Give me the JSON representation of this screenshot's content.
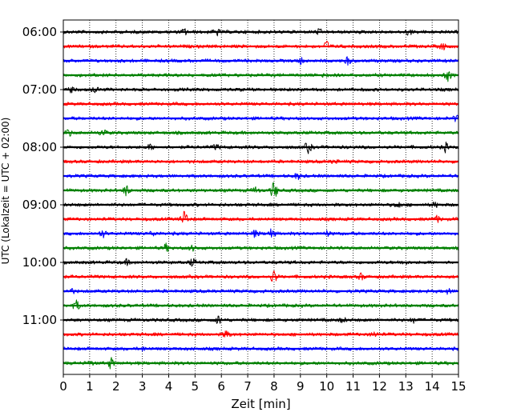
{
  "chart_data": {
    "type": "line",
    "subtype": "seismic helicorder",
    "xlabel": "Zeit  [min]",
    "ylabel": "UTC (Lokalzeit = UTC + 02:00)",
    "xlim": [
      0,
      15
    ],
    "x_ticks": [
      0,
      1,
      2,
      3,
      4,
      5,
      6,
      7,
      8,
      9,
      10,
      11,
      12,
      13,
      14,
      15
    ],
    "x_tick_labels": [
      "0",
      "1",
      "2",
      "3",
      "4",
      "5",
      "6",
      "7",
      "8",
      "9",
      "10",
      "11",
      "12",
      "13",
      "14",
      "15"
    ],
    "y_tick_labels": [
      "06:00",
      "07:00",
      "08:00",
      "09:00",
      "10:00",
      "11:00"
    ],
    "grid": "vertical dotted",
    "line_colors": [
      "#000000",
      "#ff0000",
      "#0000ff",
      "#008000"
    ],
    "traces": [
      {
        "start": "06:00",
        "color": "#000000",
        "events": [
          [
            4.6,
            0.5
          ],
          [
            5.8,
            0.7
          ],
          [
            9.7,
            0.4
          ],
          [
            13.1,
            0.5
          ]
        ]
      },
      {
        "start": "06:15",
        "color": "#ff0000",
        "events": [
          [
            10.0,
            0.9
          ],
          [
            14.4,
            0.5
          ]
        ]
      },
      {
        "start": "06:30",
        "color": "#0000ff",
        "events": [
          [
            9.0,
            0.5
          ],
          [
            10.8,
            0.6
          ]
        ]
      },
      {
        "start": "06:45",
        "color": "#008000",
        "events": [
          [
            14.6,
            0.9
          ],
          [
            9.9,
            0.3
          ]
        ]
      },
      {
        "start": "07:00",
        "color": "#000000",
        "events": [
          [
            0.3,
            0.4
          ],
          [
            1.2,
            0.5
          ]
        ]
      },
      {
        "start": "07:15",
        "color": "#ff0000",
        "events": []
      },
      {
        "start": "07:30",
        "color": "#0000ff",
        "events": [
          [
            14.9,
            0.4
          ]
        ]
      },
      {
        "start": "07:45",
        "color": "#008000",
        "events": [
          [
            0.2,
            0.6
          ],
          [
            1.5,
            0.7
          ]
        ]
      },
      {
        "start": "08:00",
        "color": "#000000",
        "events": [
          [
            3.3,
            0.4
          ],
          [
            5.8,
            0.4
          ],
          [
            9.3,
            0.9
          ],
          [
            14.5,
            0.7
          ]
        ]
      },
      {
        "start": "08:15",
        "color": "#ff0000",
        "events": [
          [
            10.3,
            0.3
          ]
        ]
      },
      {
        "start": "08:30",
        "color": "#0000ff",
        "events": [
          [
            8.9,
            0.5
          ]
        ]
      },
      {
        "start": "08:45",
        "color": "#008000",
        "events": [
          [
            2.4,
            0.9
          ],
          [
            7.3,
            0.5
          ],
          [
            8.0,
            1.6
          ]
        ]
      },
      {
        "start": "09:00",
        "color": "#000000",
        "events": [
          [
            12.7,
            0.5
          ],
          [
            14.1,
            0.4
          ]
        ]
      },
      {
        "start": "09:15",
        "color": "#ff0000",
        "events": [
          [
            4.6,
            1.5
          ],
          [
            14.2,
            0.5
          ]
        ]
      },
      {
        "start": "09:30",
        "color": "#0000ff",
        "events": [
          [
            1.5,
            0.6
          ],
          [
            3.4,
            0.4
          ],
          [
            7.3,
            0.6
          ],
          [
            7.9,
            0.8
          ],
          [
            10.0,
            0.4
          ]
        ]
      },
      {
        "start": "09:45",
        "color": "#008000",
        "events": [
          [
            3.9,
            0.6
          ],
          [
            4.9,
            0.4
          ]
        ]
      },
      {
        "start": "10:00",
        "color": "#000000",
        "events": [
          [
            2.4,
            0.4
          ],
          [
            4.9,
            0.6
          ],
          [
            12.9,
            0.4
          ]
        ]
      },
      {
        "start": "10:15",
        "color": "#ff0000",
        "events": [
          [
            8.0,
            1.2
          ],
          [
            11.3,
            0.5
          ]
        ]
      },
      {
        "start": "10:30",
        "color": "#0000ff",
        "events": [
          [
            0.3,
            0.4
          ],
          [
            14.6,
            0.4
          ]
        ]
      },
      {
        "start": "10:45",
        "color": "#008000",
        "events": [
          [
            0.5,
            0.8
          ]
        ]
      },
      {
        "start": "11:00",
        "color": "#000000",
        "events": [
          [
            5.9,
            0.7
          ],
          [
            10.6,
            0.4
          ],
          [
            13.3,
            0.4
          ]
        ]
      },
      {
        "start": "11:15",
        "color": "#ff0000",
        "events": [
          [
            6.2,
            0.7
          ],
          [
            11.8,
            0.4
          ]
        ]
      },
      {
        "start": "11:30",
        "color": "#0000ff",
        "events": [
          [
            3.0,
            0.3
          ]
        ]
      },
      {
        "start": "11:45",
        "color": "#008000",
        "events": [
          [
            1.8,
            0.9
          ],
          [
            1.0,
            0.4
          ]
        ]
      }
    ]
  }
}
